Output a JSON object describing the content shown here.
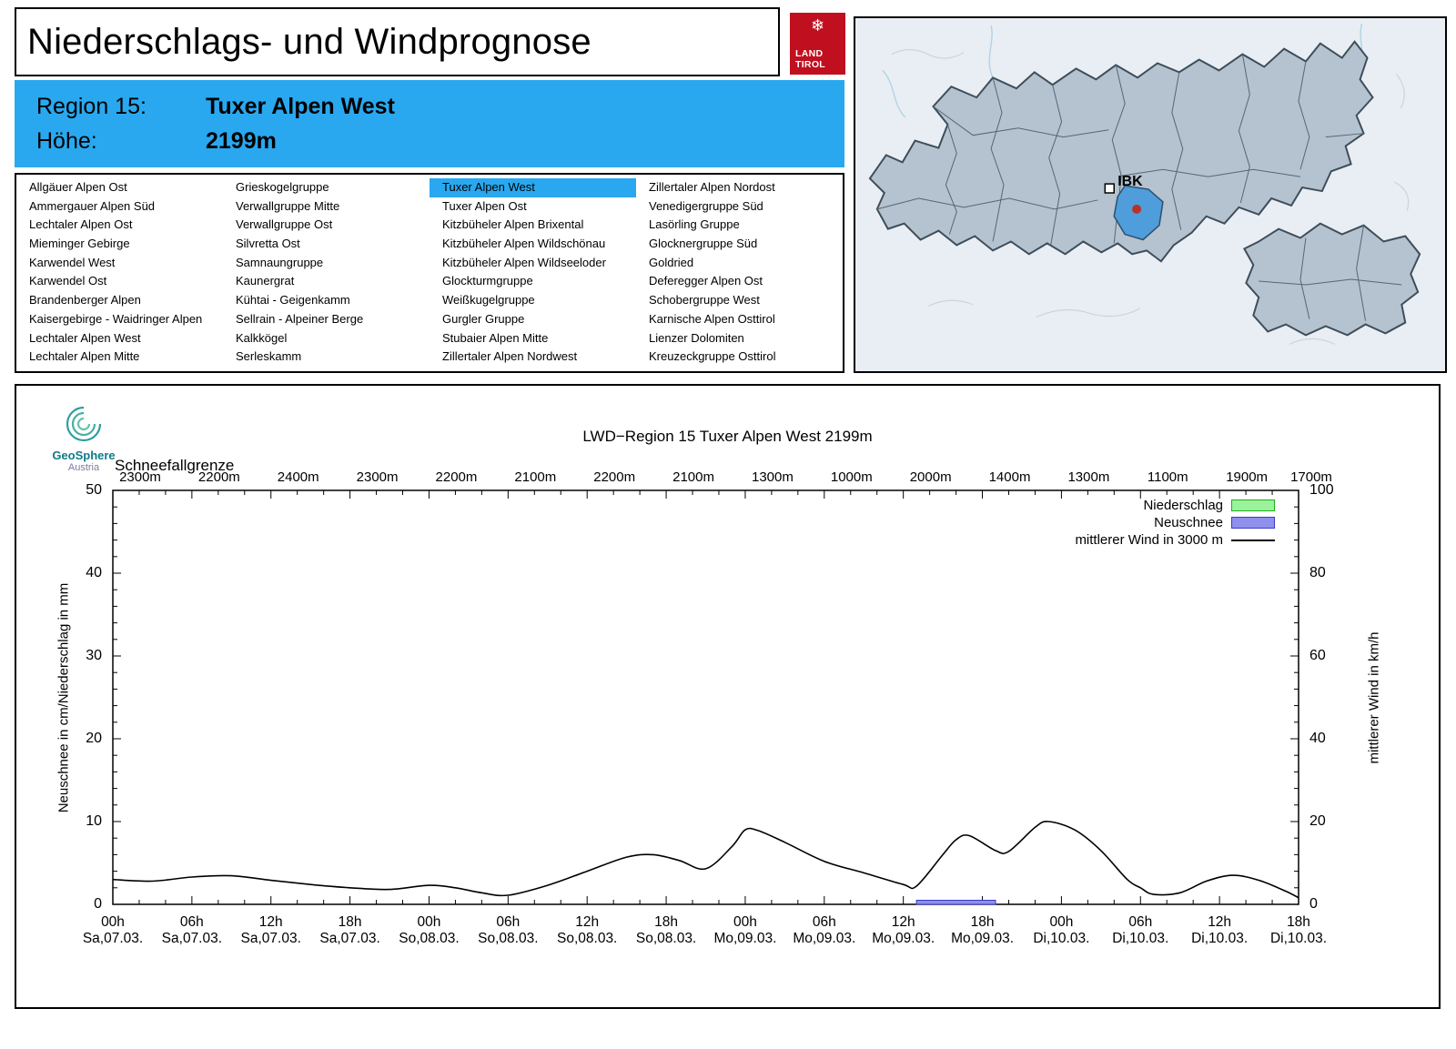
{
  "header": {
    "title": "Niederschlags- und Windprognose",
    "logo": {
      "snowflake": "❄",
      "line1": "LAND",
      "line2": "TIROL"
    }
  },
  "region_box": {
    "region_label": "Region 15:",
    "region_value": "Tuxer Alpen West",
    "altitude_label": "Höhe:",
    "altitude_value": "2199m",
    "background": "#29a8f0"
  },
  "region_list": {
    "selected": "Tuxer Alpen West",
    "highlight_color": "#29a8f0",
    "columns": [
      [
        "Allgäuer Alpen Ost",
        "Ammergauer Alpen Süd",
        "Lechtaler Alpen Ost",
        "Mieminger Gebirge",
        "Karwendel West",
        "Karwendel Ost",
        "Brandenberger Alpen",
        "Kaisergebirge - Waidringer Alpen",
        "Lechtaler Alpen West",
        "Lechtaler Alpen Mitte"
      ],
      [
        "Grieskogelgruppe",
        "Verwallgruppe Mitte",
        "Verwallgruppe Ost",
        "Silvretta Ost",
        "Samnaungruppe",
        "Kaunergrat",
        "Kühtai - Geigenkamm",
        "Sellrain - Alpeiner Berge",
        "Kalkkögel",
        "Serleskamm"
      ],
      [
        "Tuxer Alpen West",
        "Tuxer Alpen Ost",
        "Kitzbüheler Alpen Brixental",
        "Kitzbüheler Alpen Wildschönau",
        "Kitzbüheler Alpen Wildseeloder",
        "Glockturmgruppe",
        "Weißkugelgruppe",
        "Gurgler Gruppe",
        "Stubaier Alpen Mitte",
        "Zillertaler Alpen Nordwest"
      ],
      [
        "Zillertaler Alpen Nordost",
        "Venedigergruppe Süd",
        "Lasörling Gruppe",
        "Glocknergruppe Süd",
        "Goldried",
        "Deferegger Alpen Ost",
        "Schobergruppe West",
        "Karnische Alpen Osttirol",
        "Lienzer Dolomiten",
        "Kreuzeckgruppe Osttirol"
      ]
    ]
  },
  "map": {
    "marker_label": "IBK"
  },
  "geosphere": {
    "line1": "GeoSphere",
    "line2": "Austria"
  },
  "chart_data": {
    "type": "line",
    "title": "LWD−Region 15 Tuxer Alpen West 2199m",
    "snowline_label": "Schneefallgrenze",
    "snowline_values": [
      "2300m",
      "2200m",
      "2400m",
      "2300m",
      "2200m",
      "2100m",
      "2200m",
      "2100m",
      "1300m",
      "1000m",
      "2000m",
      "1400m",
      "1300m",
      "1100m",
      "1900m",
      "1700m"
    ],
    "ylabel_left": "Neuschnee in cm/Niederschlag in mm",
    "ylabel_right": "mittlerer Wind in km/h",
    "ylim_left": [
      0,
      50
    ],
    "ylim_right": [
      0,
      100
    ],
    "yticks_left": [
      0,
      10,
      20,
      30,
      40,
      50
    ],
    "yticks_right": [
      0,
      20,
      40,
      60,
      80,
      100
    ],
    "x_hours_range": [
      0,
      90
    ],
    "x_ticks": [
      {
        "hour": 0,
        "time": "00h",
        "date": "Sa,07.03."
      },
      {
        "hour": 6,
        "time": "06h",
        "date": "Sa,07.03."
      },
      {
        "hour": 12,
        "time": "12h",
        "date": "Sa,07.03."
      },
      {
        "hour": 18,
        "time": "18h",
        "date": "Sa,07.03."
      },
      {
        "hour": 24,
        "time": "00h",
        "date": "So,08.03."
      },
      {
        "hour": 30,
        "time": "06h",
        "date": "So,08.03."
      },
      {
        "hour": 36,
        "time": "12h",
        "date": "So,08.03."
      },
      {
        "hour": 42,
        "time": "18h",
        "date": "So,08.03."
      },
      {
        "hour": 48,
        "time": "00h",
        "date": "Mo,09.03."
      },
      {
        "hour": 54,
        "time": "06h",
        "date": "Mo,09.03."
      },
      {
        "hour": 60,
        "time": "12h",
        "date": "Mo,09.03."
      },
      {
        "hour": 66,
        "time": "18h",
        "date": "Mo,09.03."
      },
      {
        "hour": 72,
        "time": "00h",
        "date": "Di,10.03."
      },
      {
        "hour": 78,
        "time": "06h",
        "date": "Di,10.03."
      },
      {
        "hour": 84,
        "time": "12h",
        "date": "Di,10.03."
      },
      {
        "hour": 90,
        "time": "18h",
        "date": "Di,10.03."
      }
    ],
    "legend": [
      {
        "label": "Niederschlag",
        "type": "box",
        "fill": "#9bf29b",
        "stroke": "#1faf1f"
      },
      {
        "label": "Neuschnee",
        "type": "box",
        "fill": "#8f8fee",
        "stroke": "#3a3ac8"
      },
      {
        "label": "mittlerer Wind in 3000 m",
        "type": "line",
        "stroke": "#000000"
      }
    ],
    "series": [
      {
        "name": "mittlerer Wind in 3000 m",
        "axis": "right",
        "unit": "km/h",
        "color": "#000000",
        "x_hours": [
          0,
          3,
          6,
          9,
          12,
          15,
          18,
          21,
          24,
          26,
          28,
          30,
          33,
          36,
          39,
          41,
          43,
          45,
          47,
          48,
          49,
          51,
          54,
          57,
          60,
          61,
          63,
          64,
          65,
          67,
          68,
          70,
          71,
          73,
          75,
          77,
          78,
          79,
          81,
          83,
          85,
          87,
          89,
          90
        ],
        "values": [
          6.0,
          5.6,
          6.6,
          6.9,
          5.8,
          4.8,
          4.0,
          3.6,
          4.6,
          4.0,
          2.8,
          2.2,
          4.6,
          8.0,
          11.4,
          12.0,
          10.6,
          8.6,
          14.0,
          18.0,
          17.8,
          15.0,
          10.4,
          7.6,
          4.8,
          4.4,
          12.0,
          15.6,
          16.6,
          13.0,
          12.8,
          18.6,
          20.0,
          18.0,
          13.0,
          6.0,
          4.0,
          2.4,
          2.8,
          5.6,
          7.0,
          5.8,
          3.2,
          1.6
        ]
      }
    ],
    "bars": [
      {
        "name": "Neuschnee",
        "axis": "left",
        "unit": "cm",
        "start_hour": 61,
        "end_hour": 67,
        "value": 0.5,
        "fill": "#8f8fee",
        "stroke": "#3a3ac8"
      }
    ]
  }
}
